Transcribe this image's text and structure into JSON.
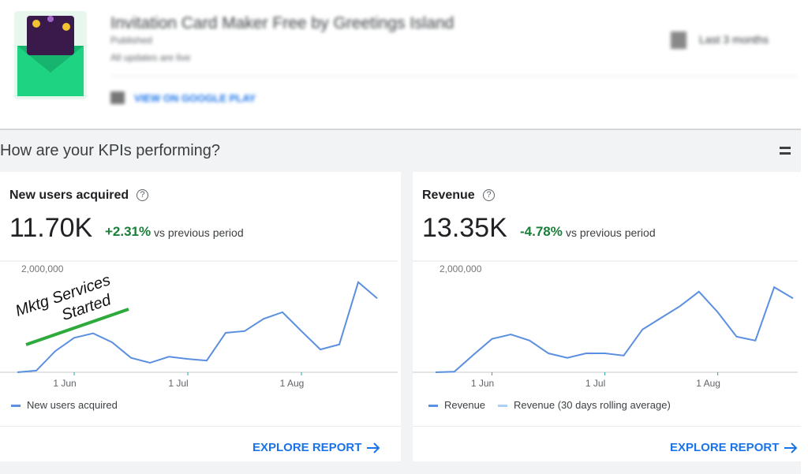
{
  "header": {
    "app_name": "Invitation Card Maker Free by Greetings Island",
    "status": "Published",
    "status_detail": "All updates are live",
    "store_link": "VIEW ON GOOGLE PLAY",
    "date_range": "Last 3 months"
  },
  "section_title": "How are your KPIs performing?",
  "cards": [
    {
      "title": "New users acquired",
      "value": "11.70K",
      "change": "+2.31%",
      "change_note": "vs previous period",
      "explore": "EXPLORE REPORT",
      "annotation": [
        "Mktg Services",
        "Started"
      ],
      "chart": {
        "type": "line",
        "categories": [
          null,
          null,
          null,
          "1 Jun",
          null,
          null,
          null,
          null,
          null,
          "1 Jul",
          null,
          null,
          null,
          null,
          null,
          "1 Aug",
          null,
          null,
          null,
          null
        ],
        "series": [
          {
            "name": "New users acquired",
            "color": "#5b8fe0",
            "values": [
              0,
              30000,
              380000,
              620000,
              700000,
              540000,
              260000,
              170000,
              280000,
              240000,
              210000,
              710000,
              740000,
              960000,
              1080000,
              740000,
              410000,
              500000,
              1620000,
              1330000
            ]
          }
        ],
        "ylim": [
          0,
          2000000
        ],
        "yticks": [
          {
            "value": 2000000,
            "label": "2,000,000"
          }
        ]
      }
    },
    {
      "title": "Revenue",
      "value": "13.35K",
      "change": "-4.78%",
      "change_note": "vs previous period",
      "explore": "EXPLORE REPORT",
      "chart": {
        "type": "line",
        "categories": [
          null,
          null,
          null,
          "1 Jun",
          null,
          null,
          null,
          null,
          null,
          "1 Jul",
          null,
          null,
          null,
          null,
          null,
          "1 Aug",
          null,
          null,
          null,
          null
        ],
        "series": [
          {
            "name": "Revenue",
            "color": "#5b8fe0",
            "values": [
              0,
              10000,
              310000,
              600000,
              680000,
              570000,
              340000,
              260000,
              340000,
              340000,
              300000,
              770000,
              980000,
              1190000,
              1450000,
              1080000,
              640000,
              570000,
              1530000,
              1330000
            ]
          }
        ],
        "legend_extra": [
          {
            "name": "Revenue (30 days rolling average)",
            "color": "#a8d1f5"
          }
        ],
        "ylim": [
          0,
          2000000
        ],
        "yticks": [
          {
            "value": 2000000,
            "label": "2,000,000"
          }
        ]
      }
    }
  ]
}
